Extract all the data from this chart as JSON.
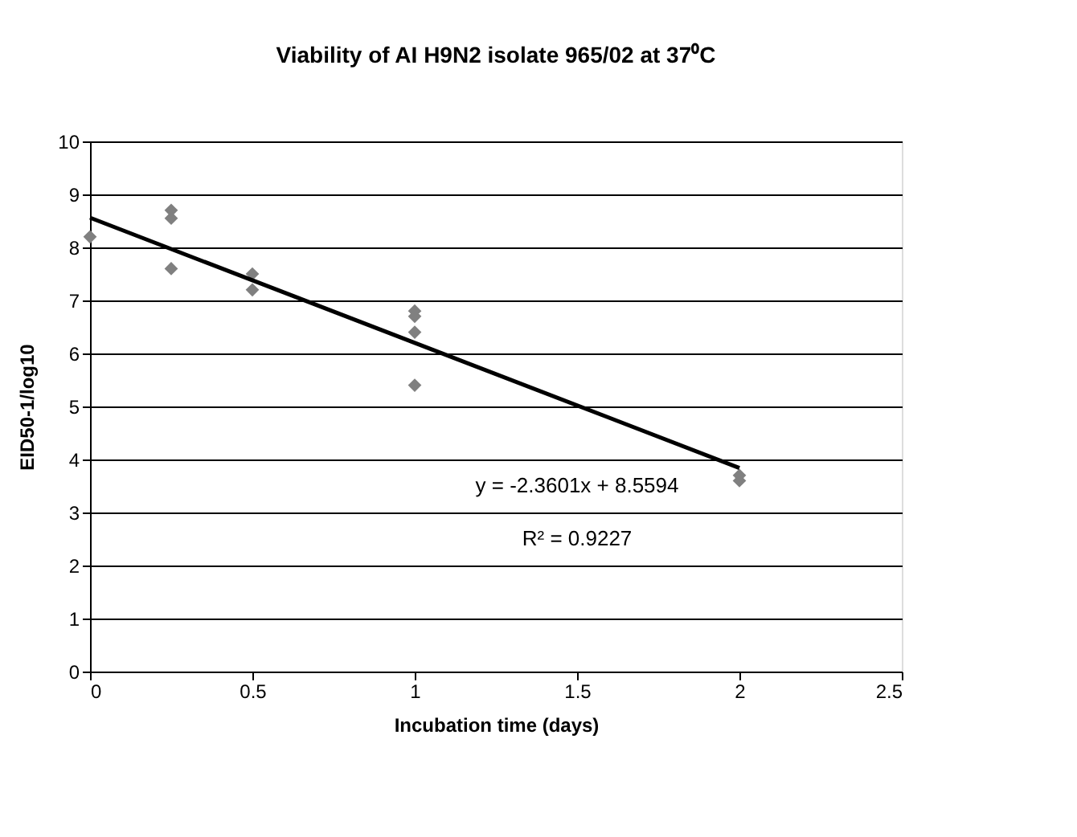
{
  "chart_data": {
    "type": "scatter",
    "title": "Viability of AI H9N2 isolate 965/02 at 37⁰C",
    "xlabel": "Incubation time (days)",
    "ylabel": "EID50-1/log10",
    "series": [
      {
        "type": "scatter",
        "color": "#808080",
        "marker": "diamond",
        "x": [
          0,
          0.25,
          0.25,
          0.25,
          0.5,
          0.5,
          1,
          1,
          1,
          1,
          2,
          2
        ],
        "values": [
          8.2,
          8.7,
          8.55,
          7.6,
          7.5,
          7.2,
          6.8,
          6.7,
          6.4,
          5.4,
          3.7,
          3.6
        ]
      },
      {
        "type": "line",
        "color": "#000000",
        "marker": "none",
        "line_style": "solid",
        "x": [
          0,
          2
        ],
        "values": [
          8.56,
          3.84
        ]
      }
    ],
    "annotations": [
      "y = -2.3601x + 8.5594",
      "R² = 0.9227"
    ],
    "xlim": [
      0,
      2.5
    ],
    "xticks": [
      0,
      0.5,
      1,
      1.5,
      2,
      2.5
    ],
    "ylim": [
      0,
      10
    ],
    "yticks": [
      0,
      1,
      2,
      3,
      4,
      5,
      6,
      7,
      8,
      9,
      10
    ],
    "grid": "y"
  }
}
